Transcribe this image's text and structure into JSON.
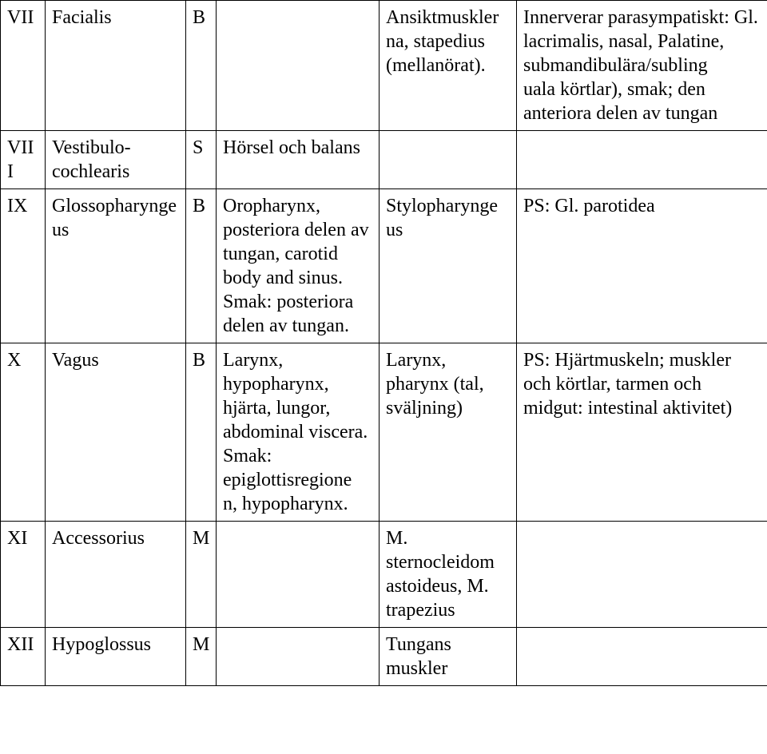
{
  "table": {
    "rows": [
      {
        "num": "VII",
        "name": "Facialis",
        "type": "B",
        "col4": "",
        "col5": "Ansiktmuskler\nna, stapedius (mellanörat).",
        "col6": "Innerverar parasympatiskt: Gl. lacrimalis, nasal, Palatine, submandibulära/subling\nuala körtlar), smak; den anteriora delen av tungan"
      },
      {
        "num": "VIII",
        "name": "Vestibulo-cochlearis",
        "type": "S",
        "col4": "Hörsel och balans",
        "col5": "",
        "col6": ""
      },
      {
        "num": "IX",
        "name": "Glossopharynge\nus",
        "type": "B",
        "col4": "Oropharynx, posteriora delen av tungan, carotid body and sinus. Smak: posteriora delen av tungan.",
        "col5": "Stylopharynge\nus",
        "col6": "PS: Gl. parotidea"
      },
      {
        "num": "X",
        "name": "Vagus",
        "type": "B",
        "col4": "Larynx, hypopharynx, hjärta, lungor, abdominal viscera. Smak: epiglottisregione\nn, hypopharynx.",
        "col5": "Larynx, pharynx (tal, sväljning)",
        "col6": "PS: Hjärtmuskeln; muskler och körtlar, tarmen och midgut: intestinal aktivitet)"
      },
      {
        "num": "XI",
        "name": "Accessorius",
        "type": "M",
        "col4": "",
        "col5": "M. sternocleidom\nastoideus, M. trapezius",
        "col6": ""
      },
      {
        "num": "XII",
        "name": "Hypoglossus",
        "type": "M",
        "col4": "",
        "col5": "Tungans muskler",
        "col6": ""
      }
    ]
  }
}
